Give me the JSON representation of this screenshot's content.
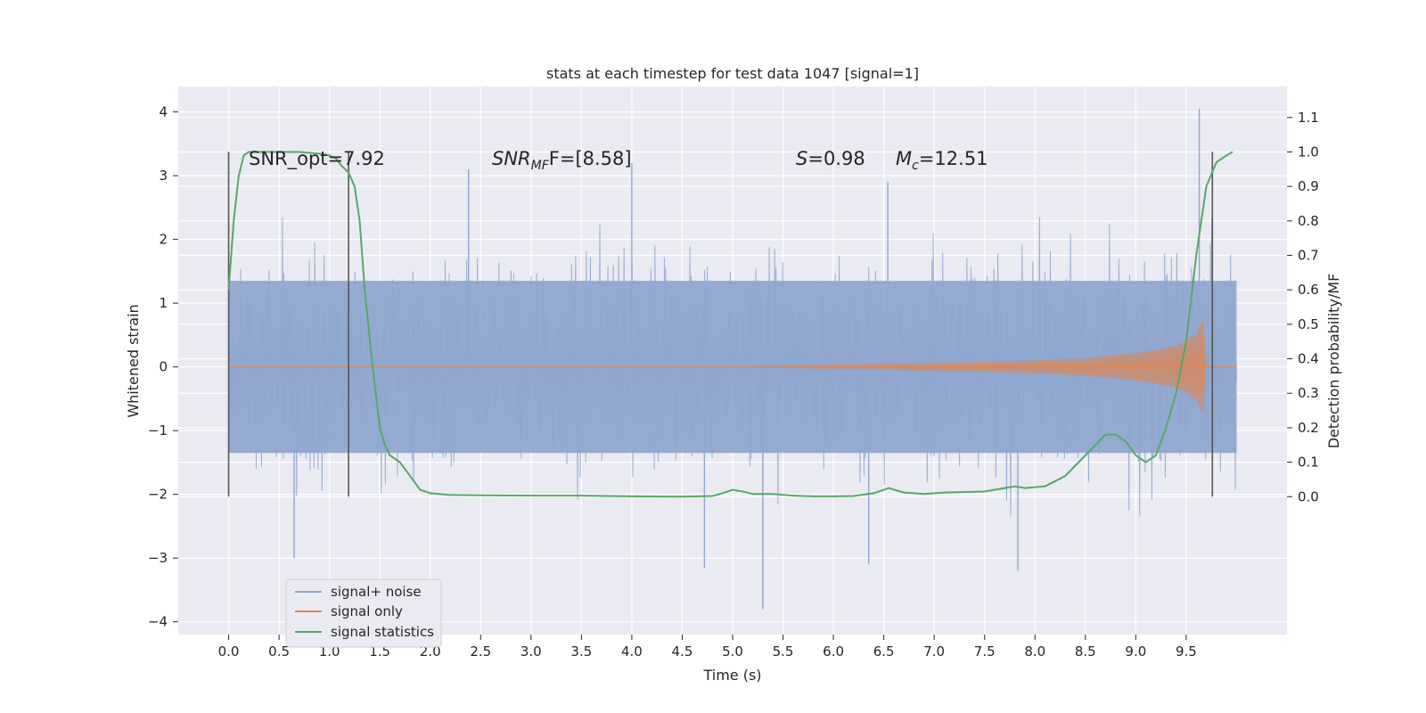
{
  "chart_data": {
    "type": "line",
    "title": "stats at each timestep for test data 1047 [signal=1]",
    "xlabel": "Time (s)",
    "ylabel": "Whitened strain",
    "ylabel_right": "Detection probability/MF",
    "xlim": [
      -0.5,
      10.5
    ],
    "ylim": [
      -4.2,
      4.4
    ],
    "ylim_right": [
      -0.4,
      1.19
    ],
    "xticks": [
      "0.0",
      "0.5",
      "1.0",
      "1.5",
      "2.0",
      "2.5",
      "3.0",
      "3.5",
      "4.0",
      "4.5",
      "5.0",
      "5.5",
      "6.0",
      "6.5",
      "7.0",
      "7.5",
      "8.0",
      "8.5",
      "9.0",
      "9.5"
    ],
    "yticks": [
      "4",
      "3",
      "2",
      "1",
      "0",
      "−1",
      "−2",
      "−3",
      "−4"
    ],
    "yticks_right": [
      "1.1",
      "1.0",
      "0.9",
      "0.8",
      "0.7",
      "0.6",
      "0.5",
      "0.4",
      "0.3",
      "0.2",
      "0.1",
      "0.0"
    ],
    "grid": true,
    "legend_position": "lower-left",
    "colors": {
      "background": "#eaeaf2",
      "grid": "#ffffff",
      "noise": "#8fa6cf",
      "signal": "#dd8452",
      "stats": "#55a868",
      "vline": "#555555"
    },
    "annotations": {
      "snr_opt": "SNR_opt=7.92",
      "snr_mf_main": "SNR",
      "snr_mf_sub": "MF",
      "snr_mf_tail": "F=[8.58]",
      "s_main": "S",
      "s_tail": "=0.98",
      "mc_main": "M",
      "mc_sub": "c",
      "mc_tail": "=12.51"
    },
    "vertical_lines_x": [
      0.0,
      1.19,
      9.76
    ],
    "series": [
      {
        "name": "signal+ noise",
        "kind": "noise",
        "x_range": [
          0.0,
          10.0
        ],
        "peaks": [
          {
            "x": 2.38,
            "y": 3.1
          },
          {
            "x": 4.0,
            "y": 3.2
          },
          {
            "x": 6.54,
            "y": 2.9
          },
          {
            "x": 9.63,
            "y": 4.05
          },
          {
            "x": 5.3,
            "y": -3.8
          },
          {
            "x": 4.72,
            "y": -3.15
          },
          {
            "x": 7.83,
            "y": -3.2
          },
          {
            "x": 0.65,
            "y": -3.0
          },
          {
            "x": 6.35,
            "y": -3.1
          }
        ]
      },
      {
        "name": "signal only",
        "kind": "chirp",
        "x": [
          0.0,
          5.0,
          6.0,
          7.0,
          8.0,
          8.5,
          9.0,
          9.3,
          9.5,
          9.6,
          9.67,
          9.7,
          10.0
        ],
        "envelope": [
          0.0,
          0.0,
          0.03,
          0.06,
          0.1,
          0.14,
          0.22,
          0.3,
          0.42,
          0.55,
          0.75,
          0.0,
          0.0
        ]
      },
      {
        "name": "signal statistics",
        "kind": "line",
        "x": [
          0.0,
          0.05,
          0.1,
          0.15,
          0.2,
          0.3,
          0.5,
          0.7,
          0.9,
          1.0,
          1.07,
          1.12,
          1.19,
          1.25,
          1.3,
          1.35,
          1.42,
          1.5,
          1.55,
          1.6,
          1.7,
          1.8,
          1.9,
          2.0,
          2.2,
          2.5,
          3.0,
          3.5,
          4.0,
          4.5,
          4.8,
          4.9,
          5.0,
          5.1,
          5.2,
          5.4,
          5.6,
          5.8,
          6.0,
          6.2,
          6.4,
          6.55,
          6.7,
          6.9,
          7.1,
          7.5,
          7.7,
          7.8,
          7.9,
          8.1,
          8.3,
          8.5,
          8.7,
          8.8,
          8.9,
          9.0,
          9.1,
          9.2,
          9.3,
          9.4,
          9.5,
          9.6,
          9.7,
          9.8,
          9.85,
          9.9,
          9.96
        ],
        "y": [
          0.6,
          0.8,
          0.93,
          0.99,
          1.0,
          1.0,
          1.0,
          1.0,
          0.995,
          0.99,
          0.98,
          0.96,
          0.94,
          0.9,
          0.8,
          0.6,
          0.4,
          0.2,
          0.15,
          0.12,
          0.1,
          0.06,
          0.02,
          0.01,
          0.005,
          0.004,
          0.003,
          0.003,
          0.001,
          0.0,
          0.002,
          0.01,
          0.02,
          0.015,
          0.008,
          0.008,
          0.003,
          0.001,
          0.001,
          0.002,
          0.01,
          0.025,
          0.012,
          0.008,
          0.012,
          0.015,
          0.025,
          0.03,
          0.025,
          0.03,
          0.06,
          0.12,
          0.18,
          0.18,
          0.16,
          0.12,
          0.1,
          0.12,
          0.2,
          0.3,
          0.45,
          0.7,
          0.9,
          0.97,
          0.98,
          0.99,
          1.0
        ]
      }
    ]
  }
}
